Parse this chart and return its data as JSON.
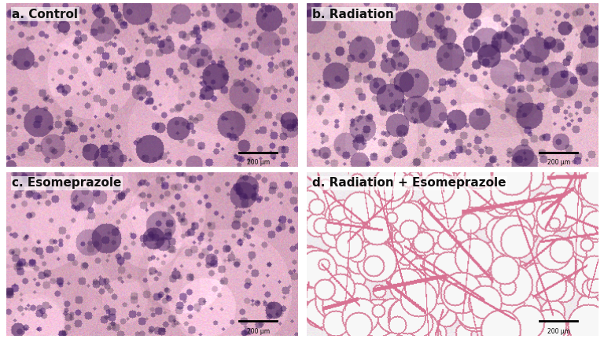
{
  "panels": [
    {
      "label": "a. Control",
      "key": "a"
    },
    {
      "label": "b. Radiation",
      "key": "b"
    },
    {
      "label": "c. Esomeprazole",
      "key": "c"
    },
    {
      "label": "d. Radiation + Esomeprazole",
      "key": "d"
    }
  ],
  "scale_bar_text": "200 μm",
  "figure_bg": "#ffffff",
  "label_fontsize": 11,
  "label_color": "#111111",
  "label_fontweight": "bold",
  "panel_colors": {
    "a": {
      "base_pink": [
        210,
        160,
        185
      ],
      "purple_density": 0.45,
      "dark_spots": 0.15,
      "fatty": false
    },
    "b": {
      "base_pink": [
        220,
        175,
        195
      ],
      "purple_density": 0.35,
      "dark_spots": 0.25,
      "fatty": false
    },
    "c": {
      "base_pink": [
        215,
        165,
        190
      ],
      "purple_density": 0.5,
      "dark_spots": 0.08,
      "fatty": false
    },
    "d": {
      "base_pink": [
        245,
        200,
        215
      ],
      "purple_density": 0.05,
      "dark_spots": 0.01,
      "fatty": true
    }
  }
}
